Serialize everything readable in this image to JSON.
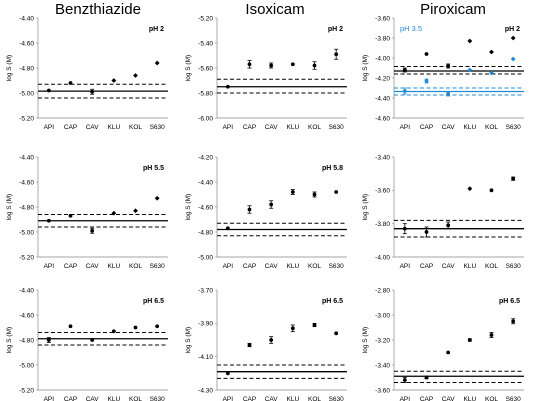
{
  "drug_titles": [
    "Benzthiazide",
    "Isoxicam",
    "Piroxicam"
  ],
  "chart_data": [
    {
      "type": "scatter",
      "title": "",
      "panel_label": "pH 2",
      "ylabel": "log S (M)",
      "categories": [
        "API",
        "CAP",
        "CAV",
        "KLU",
        "KOL",
        "S630"
      ],
      "ylim": [
        -5.2,
        -4.4
      ],
      "yticks": [
        "-4.40",
        "-4.60",
        "-4.80",
        "-5.00",
        "-5.20"
      ],
      "series": [
        {
          "values": [
            -4.98,
            -4.92,
            -4.99,
            -4.9,
            -4.86,
            -4.76
          ],
          "errors": [
            0,
            0,
            0.02,
            0,
            0,
            0
          ],
          "markers": [
            "circle",
            "circle",
            "circle",
            "diamond",
            "diamond",
            "diamond"
          ],
          "color": "#000000"
        }
      ],
      "ref_line": -4.985,
      "ref_bounds": [
        -4.93,
        -5.04
      ]
    },
    {
      "type": "scatter",
      "title": "",
      "panel_label": "pH 2",
      "ylabel": "log S (M)",
      "categories": [
        "API",
        "CAP",
        "CAV",
        "KLU",
        "KOL",
        "S630"
      ],
      "ylim": [
        -6.0,
        -5.2
      ],
      "yticks": [
        "-5.20",
        "-5.40",
        "-5.60",
        "-5.80",
        "-6.00"
      ],
      "series": [
        {
          "values": [
            -5.75,
            -5.57,
            -5.58,
            -5.57,
            -5.58,
            -5.49
          ],
          "errors": [
            0,
            0.03,
            0.02,
            0,
            0.03,
            0.04
          ],
          "markers": [
            "circle",
            "circle",
            "circle",
            "circle",
            "circle",
            "circle"
          ],
          "color": "#000000"
        }
      ],
      "ref_line": -5.75,
      "ref_bounds": [
        -5.69,
        -5.8
      ]
    },
    {
      "type": "scatter",
      "title": "",
      "panel_label": "pH 2",
      "blue_label": "pH 3.5",
      "ylabel": "log S (M)",
      "categories": [
        "API",
        "CAP",
        "CAV",
        "KLU",
        "KOL",
        "S630"
      ],
      "ylim": [
        -4.6,
        -3.6
      ],
      "yticks": [
        "-3.60",
        "-3.80",
        "-4.00",
        "-4.20",
        "-4.40",
        "-4.60"
      ],
      "series": [
        {
          "name": "pH 2",
          "values": [
            -4.12,
            -3.96,
            -4.08,
            -3.83,
            -3.94,
            -3.8
          ],
          "errors": [
            0.02,
            0,
            0.02,
            0,
            0,
            0
          ],
          "markers": [
            "circle",
            "circle",
            "circle",
            "diamond",
            "diamond",
            "diamond"
          ],
          "color": "#000000"
        },
        {
          "name": "pH 3.5",
          "values": [
            -4.33,
            -4.23,
            -4.36,
            -4.12,
            -4.15,
            -4.01
          ],
          "errors": [
            0.03,
            0.02,
            0.02,
            0,
            0,
            0
          ],
          "markers": [
            "circle",
            "circle",
            "circle",
            "diamond",
            "diamond",
            "diamond"
          ],
          "color": "#1f8bd6"
        }
      ],
      "ref_line": -4.13,
      "ref_bounds": [
        -4.085,
        -4.16
      ],
      "ref_line_blue": -4.335,
      "ref_bounds_blue": [
        -4.3,
        -4.37
      ]
    },
    {
      "type": "scatter",
      "title": "",
      "panel_label": "pH 5.5",
      "ylabel": "log S (M)",
      "categories": [
        "API",
        "CAP",
        "CAV",
        "KLU",
        "KOL",
        "S630"
      ],
      "ylim": [
        -5.2,
        -4.4
      ],
      "yticks": [
        "-4.40",
        "-4.60",
        "-4.80",
        "-5.00",
        "-5.20"
      ],
      "series": [
        {
          "values": [
            -4.91,
            -4.87,
            -4.99,
            -4.85,
            -4.83,
            -4.73
          ],
          "errors": [
            0,
            0,
            0.02,
            0,
            0,
            0
          ],
          "markers": [
            "circle",
            "circle",
            "circle",
            "diamond",
            "diamond",
            "diamond"
          ],
          "color": "#000000"
        }
      ],
      "ref_line": -4.91,
      "ref_bounds": [
        -4.86,
        -4.96
      ]
    },
    {
      "type": "scatter",
      "title": "",
      "panel_label": "pH 5.8",
      "ylabel": "log S (M)",
      "categories": [
        "API",
        "CAP",
        "CAV",
        "KLU",
        "KOL",
        "S630"
      ],
      "ylim": [
        -5.0,
        -4.2
      ],
      "yticks": [
        "-4.20",
        "-4.40",
        "-4.60",
        "-4.80",
        "-5.00"
      ],
      "series": [
        {
          "values": [
            -4.77,
            -4.62,
            -4.58,
            -4.48,
            -4.5,
            -4.48
          ],
          "errors": [
            0,
            0.03,
            0.03,
            0.02,
            0.02,
            0
          ],
          "markers": [
            "circle",
            "circle",
            "circle",
            "circle",
            "circle",
            "circle"
          ],
          "color": "#000000"
        }
      ],
      "ref_line": -4.78,
      "ref_bounds": [
        -4.73,
        -4.83
      ]
    },
    {
      "type": "scatter",
      "title": "",
      "panel_label": "",
      "ylabel": "log S (M)",
      "categories": [
        "API",
        "CAP",
        "CAV",
        "KLU",
        "KOL",
        "S630"
      ],
      "ylim": [
        -4.0,
        -3.4
      ],
      "yticks": [
        "-3.40",
        "-3.60",
        "-3.80",
        "-4.00"
      ],
      "series": [
        {
          "values": [
            -3.83,
            -3.85,
            -3.81,
            -3.59,
            -3.6,
            -3.53
          ],
          "errors": [
            0.03,
            0.03,
            0.02,
            0,
            0,
            0.01
          ],
          "markers": [
            "circle",
            "circle",
            "circle",
            "diamond",
            "circle",
            "circle"
          ],
          "color": "#000000"
        }
      ],
      "ref_line": -3.83,
      "ref_bounds": [
        -3.78,
        -3.88
      ]
    },
    {
      "type": "scatter",
      "title": "",
      "panel_label": "pH 6.5",
      "ylabel": "log S (M)",
      "categories": [
        "API",
        "CAP",
        "CAV",
        "KLU",
        "KOL",
        "S630"
      ],
      "ylim": [
        -5.2,
        -4.4
      ],
      "yticks": [
        "-4.40",
        "-4.60",
        "-4.80",
        "-5.00",
        "-5.20"
      ],
      "series": [
        {
          "values": [
            -4.8,
            -4.69,
            -4.8,
            -4.73,
            -4.7,
            -4.69
          ],
          "errors": [
            0.02,
            0,
            0,
            0,
            0,
            0
          ],
          "markers": [
            "circle",
            "circle",
            "circle",
            "circle",
            "circle",
            "circle"
          ],
          "color": "#000000"
        }
      ],
      "ref_line": -4.79,
      "ref_bounds": [
        -4.74,
        -4.84
      ]
    },
    {
      "type": "scatter",
      "title": "",
      "panel_label": "pH 6.5",
      "ylabel": "log S (M)",
      "categories": [
        "API",
        "CAP",
        "CAV",
        "KLU",
        "KOL",
        "S630"
      ],
      "ylim": [
        -4.3,
        -3.7
      ],
      "yticks": [
        "-3.70",
        "-3.90",
        "-4.10",
        "-4.30"
      ],
      "series": [
        {
          "values": [
            -4.2,
            -4.03,
            -4.0,
            -3.93,
            -3.91,
            -3.96
          ],
          "errors": [
            0,
            0.01,
            0.02,
            0.02,
            0.01,
            0
          ],
          "markers": [
            "circle",
            "circle",
            "circle",
            "circle",
            "circle",
            "circle"
          ],
          "color": "#000000"
        }
      ],
      "ref_line": -4.19,
      "ref_bounds": [
        -4.15,
        -4.23
      ]
    },
    {
      "type": "scatter",
      "title": "",
      "panel_label": "pH 6.5",
      "ylabel": "log S (M)",
      "categories": [
        "API",
        "CAP",
        "CAV",
        "KLU",
        "KOL",
        "S630"
      ],
      "ylim": [
        -3.6,
        -2.8
      ],
      "yticks": [
        "-2.80",
        "-3.00",
        "-3.20",
        "-3.40",
        "-3.60"
      ],
      "series": [
        {
          "values": [
            -3.52,
            -3.5,
            -3.3,
            -3.2,
            -3.16,
            -3.05
          ],
          "errors": [
            0.02,
            0.01,
            0,
            0.01,
            0.02,
            0.02
          ],
          "markers": [
            "circle",
            "circle",
            "circle",
            "circle",
            "circle",
            "circle"
          ],
          "color": "#000000"
        }
      ],
      "ref_line": -3.49,
      "ref_bounds": [
        -3.45,
        -3.54
      ]
    }
  ]
}
